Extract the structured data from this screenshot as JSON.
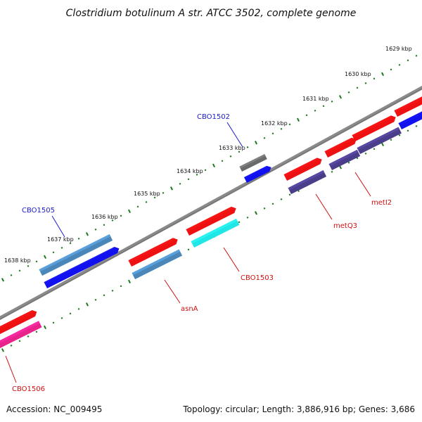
{
  "title": "Clostridium botulinum A str. ATCC 3502, complete genome",
  "footer": {
    "accession": "Accession: NC_009495",
    "topology": "Topology: circular; Length: 3,886,916 bp; Genes: 3,686"
  },
  "scale": {
    "unit": "kbp",
    "ticks": [
      "1629 kbp",
      "1630 kbp",
      "1631 kbp",
      "1632 kbp",
      "1633 kbp",
      "1634 kbp",
      "1635 kbp",
      "1636 kbp",
      "1637 kbp",
      "1638 kbp"
    ],
    "tick_color": "#1a7a1a"
  },
  "colors": {
    "backbone": "#8a8a8a",
    "gene_red": "#ee1111",
    "gene_blue": "#1111ee",
    "gene_steelblue": "#4a86b8",
    "gene_gray": "#6a6a6a",
    "gene_navy": "#4a3d8a",
    "gene_cyan": "#22e5e5",
    "gene_pink": "#e8248a",
    "label_blue": "#1a1acc",
    "label_red": "#cc1111"
  },
  "gene_labels": [
    {
      "text": "CBO1502",
      "color": "blue"
    },
    {
      "text": "CBO1505",
      "color": "blue"
    },
    {
      "text": "metI2",
      "color": "red"
    },
    {
      "text": "metQ3",
      "color": "red"
    },
    {
      "text": "CBO1503",
      "color": "red"
    },
    {
      "text": "asnA",
      "color": "red"
    },
    {
      "text": "CBO1506",
      "color": "red"
    }
  ]
}
